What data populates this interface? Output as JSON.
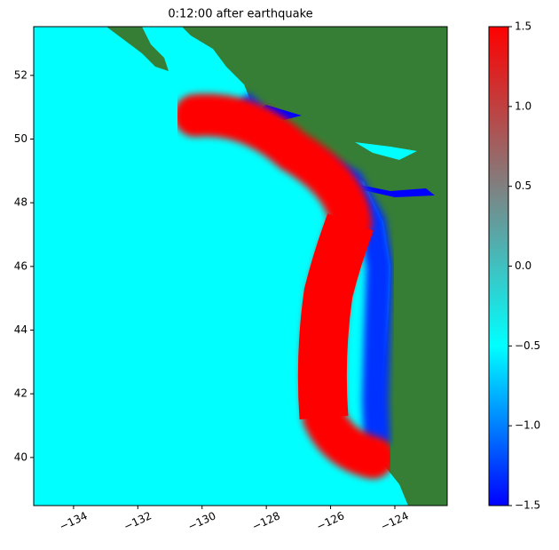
{
  "chart_data": {
    "type": "heatmap",
    "title": "0:12:00 after earthquake",
    "xlim": [
      -135.24,
      -122.37
    ],
    "ylim": [
      38.49,
      53.53
    ],
    "xticks": [
      {
        "value": -134,
        "label": "−134"
      },
      {
        "value": -132,
        "label": "−132"
      },
      {
        "value": -130,
        "label": "−130"
      },
      {
        "value": -128,
        "label": "−128"
      },
      {
        "value": -126,
        "label": "−126"
      },
      {
        "value": -124,
        "label": "−124"
      }
    ],
    "yticks": [
      40,
      42,
      44,
      46,
      48,
      50,
      52
    ],
    "colorbar": {
      "lim": [
        -1.5,
        1.5
      ],
      "ticks": [
        {
          "value": -1.5,
          "label": "−1.5"
        },
        {
          "value": -1.0,
          "label": "−1.0"
        },
        {
          "value": -0.5,
          "label": "−0.5"
        },
        {
          "value": 0.0,
          "label": "0.0"
        },
        {
          "value": 0.5,
          "label": "0.5"
        },
        {
          "value": 1.0,
          "label": "1.0"
        },
        {
          "value": 1.5,
          "label": "1.5"
        }
      ],
      "colors": [
        "#0000ff",
        "#0080ff",
        "#00ffff",
        "#40c0c0",
        "#808080",
        "#c04040",
        "#ff0000"
      ]
    }
  }
}
